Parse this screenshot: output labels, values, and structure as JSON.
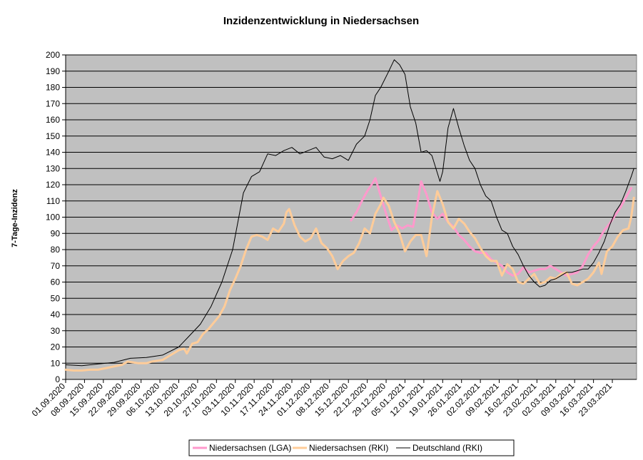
{
  "chart_data": {
    "type": "line",
    "title": "Inzidenzentwicklung in Niedersachsen",
    "xlabel": "",
    "ylabel": "7-Tage-Inzidenz",
    "ylim": [
      0,
      200
    ],
    "yticks": [
      0,
      10,
      20,
      30,
      40,
      50,
      60,
      70,
      80,
      90,
      100,
      110,
      120,
      130,
      140,
      150,
      160,
      170,
      180,
      190,
      200
    ],
    "xlim": [
      "2020-09-01",
      "2021-03-31"
    ],
    "xticks": [
      "01.09.2020",
      "08.09.2020",
      "15.09.2020",
      "22.09.2020",
      "29.09.2020",
      "06.10.2020",
      "13.10.2020",
      "20.10.2020",
      "27.10.2020",
      "03.11.2020",
      "10.11.2020",
      "17.11.2020",
      "24.11.2020",
      "01.12.2020",
      "08.12.2020",
      "15.12.2020",
      "22.12.2020",
      "29.12.2020",
      "05.01.2021",
      "12.01.2021",
      "19.01.2021",
      "26.01.2021",
      "02.02.2021",
      "09.02.2021",
      "16.02.2021",
      "23.02.2021",
      "02.03.2021",
      "09.03.2021",
      "16.03.2021",
      "23.03.2021"
    ],
    "grid": true,
    "legend_position": "bottom",
    "background": "#c0c0c0",
    "series": [
      {
        "name": "Niedersachsen (LGA)",
        "color": "#ff99cc",
        "points": [
          [
            "2020-12-16",
            98
          ],
          [
            "2020-12-18",
            103
          ],
          [
            "2020-12-20",
            110
          ],
          [
            "2020-12-22",
            116
          ],
          [
            "2020-12-24",
            121
          ],
          [
            "2020-12-25",
            124
          ],
          [
            "2020-12-27",
            113
          ],
          [
            "2020-12-29",
            102
          ],
          [
            "2020-12-31",
            92
          ],
          [
            "2021-01-02",
            95
          ],
          [
            "2021-01-04",
            93
          ],
          [
            "2021-01-06",
            95
          ],
          [
            "2021-01-08",
            94
          ],
          [
            "2021-01-10",
            112
          ],
          [
            "2021-01-11",
            122
          ],
          [
            "2021-01-13",
            114
          ],
          [
            "2021-01-15",
            103
          ],
          [
            "2021-01-17",
            99
          ],
          [
            "2021-01-19",
            102
          ],
          [
            "2021-01-21",
            97
          ],
          [
            "2021-01-23",
            94
          ],
          [
            "2021-01-25",
            89
          ],
          [
            "2021-01-27",
            86
          ],
          [
            "2021-01-29",
            82
          ],
          [
            "2021-01-31",
            79
          ],
          [
            "2021-02-02",
            78
          ],
          [
            "2021-02-04",
            78
          ],
          [
            "2021-02-06",
            74
          ],
          [
            "2021-02-08",
            72
          ],
          [
            "2021-02-10",
            70
          ],
          [
            "2021-02-12",
            66
          ],
          [
            "2021-02-14",
            64
          ],
          [
            "2021-02-16",
            65
          ],
          [
            "2021-02-18",
            69
          ],
          [
            "2021-02-20",
            66
          ],
          [
            "2021-02-22",
            67
          ],
          [
            "2021-02-24",
            68
          ],
          [
            "2021-02-26",
            68
          ],
          [
            "2021-02-28",
            70
          ],
          [
            "2021-03-02",
            68
          ],
          [
            "2021-03-04",
            66
          ],
          [
            "2021-03-06",
            64
          ],
          [
            "2021-03-08",
            65
          ],
          [
            "2021-03-10",
            66
          ],
          [
            "2021-03-12",
            70
          ],
          [
            "2021-03-14",
            77
          ],
          [
            "2021-03-16",
            82
          ],
          [
            "2021-03-18",
            86
          ],
          [
            "2021-03-20",
            92
          ],
          [
            "2021-03-22",
            96
          ],
          [
            "2021-03-24",
            101
          ],
          [
            "2021-03-26",
            106
          ],
          [
            "2021-03-28",
            112
          ],
          [
            "2021-03-30",
            118
          ]
        ]
      },
      {
        "name": "Niedersachsen (RKI)",
        "color": "#ffcc99",
        "points": [
          [
            "2020-09-01",
            6
          ],
          [
            "2020-09-04",
            5.5
          ],
          [
            "2020-09-07",
            5.5
          ],
          [
            "2020-09-10",
            6
          ],
          [
            "2020-09-13",
            6
          ],
          [
            "2020-09-16",
            7
          ],
          [
            "2020-09-19",
            8
          ],
          [
            "2020-09-22",
            9
          ],
          [
            "2020-09-24",
            11
          ],
          [
            "2020-09-26",
            10.5
          ],
          [
            "2020-09-28",
            10
          ],
          [
            "2020-10-01",
            10
          ],
          [
            "2020-10-03",
            11
          ],
          [
            "2020-10-05",
            11.5
          ],
          [
            "2020-10-07",
            12
          ],
          [
            "2020-10-09",
            14
          ],
          [
            "2020-10-11",
            16
          ],
          [
            "2020-10-13",
            18
          ],
          [
            "2020-10-15",
            19
          ],
          [
            "2020-10-16",
            16
          ],
          [
            "2020-10-18",
            22
          ],
          [
            "2020-10-20",
            23
          ],
          [
            "2020-10-22",
            28
          ],
          [
            "2020-10-24",
            31
          ],
          [
            "2020-10-26",
            35
          ],
          [
            "2020-10-28",
            39
          ],
          [
            "2020-10-30",
            45
          ],
          [
            "2020-11-01",
            55
          ],
          [
            "2020-11-03",
            62
          ],
          [
            "2020-11-05",
            70
          ],
          [
            "2020-11-07",
            80
          ],
          [
            "2020-11-09",
            88
          ],
          [
            "2020-11-11",
            89
          ],
          [
            "2020-11-13",
            88
          ],
          [
            "2020-11-15",
            86
          ],
          [
            "2020-11-17",
            93
          ],
          [
            "2020-11-19",
            91
          ],
          [
            "2020-11-21",
            96
          ],
          [
            "2020-11-22",
            103
          ],
          [
            "2020-11-23",
            105
          ],
          [
            "2020-11-25",
            95
          ],
          [
            "2020-11-27",
            88
          ],
          [
            "2020-11-29",
            85
          ],
          [
            "2020-12-01",
            87
          ],
          [
            "2020-12-03",
            93
          ],
          [
            "2020-12-05",
            84
          ],
          [
            "2020-12-07",
            81
          ],
          [
            "2020-12-09",
            76
          ],
          [
            "2020-12-11",
            68
          ],
          [
            "2020-12-13",
            73
          ],
          [
            "2020-12-15",
            76
          ],
          [
            "2020-12-17",
            78
          ],
          [
            "2020-12-19",
            84
          ],
          [
            "2020-12-21",
            93
          ],
          [
            "2020-12-23",
            90
          ],
          [
            "2020-12-25",
            102
          ],
          [
            "2020-12-27",
            108
          ],
          [
            "2020-12-28",
            112
          ],
          [
            "2020-12-30",
            107
          ],
          [
            "2021-01-01",
            97
          ],
          [
            "2021-01-03",
            90
          ],
          [
            "2021-01-05",
            79
          ],
          [
            "2021-01-07",
            85
          ],
          [
            "2021-01-09",
            89
          ],
          [
            "2021-01-11",
            89
          ],
          [
            "2021-01-13",
            76
          ],
          [
            "2021-01-15",
            100
          ],
          [
            "2021-01-17",
            116
          ],
          [
            "2021-01-19",
            108
          ],
          [
            "2021-01-21",
            97
          ],
          [
            "2021-01-23",
            93
          ],
          [
            "2021-01-25",
            99
          ],
          [
            "2021-01-27",
            96
          ],
          [
            "2021-01-29",
            91
          ],
          [
            "2021-01-31",
            87
          ],
          [
            "2021-02-02",
            81
          ],
          [
            "2021-02-04",
            76
          ],
          [
            "2021-02-06",
            73
          ],
          [
            "2021-02-08",
            73
          ],
          [
            "2021-02-10",
            64
          ],
          [
            "2021-02-12",
            71
          ],
          [
            "2021-02-14",
            68
          ],
          [
            "2021-02-16",
            60
          ],
          [
            "2021-02-18",
            59
          ],
          [
            "2021-02-20",
            62
          ],
          [
            "2021-02-22",
            65
          ],
          [
            "2021-02-24",
            59
          ],
          [
            "2021-02-26",
            60
          ],
          [
            "2021-02-28",
            63
          ],
          [
            "2021-03-02",
            62
          ],
          [
            "2021-03-04",
            65
          ],
          [
            "2021-03-06",
            66
          ],
          [
            "2021-03-08",
            59
          ],
          [
            "2021-03-10",
            58
          ],
          [
            "2021-03-12",
            60
          ],
          [
            "2021-03-14",
            62
          ],
          [
            "2021-03-16",
            66
          ],
          [
            "2021-03-18",
            72
          ],
          [
            "2021-03-19",
            65
          ],
          [
            "2021-03-21",
            79
          ],
          [
            "2021-03-23",
            82
          ],
          [
            "2021-03-25",
            88
          ],
          [
            "2021-03-27",
            92
          ],
          [
            "2021-03-29",
            93
          ],
          [
            "2021-03-30",
            100
          ],
          [
            "2021-03-31",
            112
          ]
        ]
      },
      {
        "name": "Deutschland (RKI)",
        "color": "#000000",
        "points": [
          [
            "2020-09-01",
            9
          ],
          [
            "2020-09-07",
            8.5
          ],
          [
            "2020-09-13",
            9.5
          ],
          [
            "2020-09-19",
            10.5
          ],
          [
            "2020-09-25",
            13
          ],
          [
            "2020-10-01",
            13.5
          ],
          [
            "2020-10-07",
            15
          ],
          [
            "2020-10-13",
            20
          ],
          [
            "2020-10-17",
            27
          ],
          [
            "2020-10-21",
            34
          ],
          [
            "2020-10-25",
            45
          ],
          [
            "2020-10-29",
            60
          ],
          [
            "2020-11-02",
            80
          ],
          [
            "2020-11-06",
            115
          ],
          [
            "2020-11-09",
            125
          ],
          [
            "2020-11-12",
            128
          ],
          [
            "2020-11-15",
            139
          ],
          [
            "2020-11-18",
            138
          ],
          [
            "2020-11-21",
            141
          ],
          [
            "2020-11-24",
            143
          ],
          [
            "2020-11-27",
            139
          ],
          [
            "2020-11-30",
            141
          ],
          [
            "2020-12-03",
            143
          ],
          [
            "2020-12-06",
            137
          ],
          [
            "2020-12-09",
            136
          ],
          [
            "2020-12-12",
            138
          ],
          [
            "2020-12-15",
            135
          ],
          [
            "2020-12-18",
            145
          ],
          [
            "2020-12-21",
            150
          ],
          [
            "2020-12-23",
            160
          ],
          [
            "2020-12-25",
            175
          ],
          [
            "2020-12-27",
            180
          ],
          [
            "2020-12-30",
            190
          ],
          [
            "2021-01-01",
            197
          ],
          [
            "2021-01-03",
            194
          ],
          [
            "2021-01-05",
            188
          ],
          [
            "2021-01-07",
            168
          ],
          [
            "2021-01-09",
            158
          ],
          [
            "2021-01-11",
            140
          ],
          [
            "2021-01-13",
            141
          ],
          [
            "2021-01-15",
            138
          ],
          [
            "2021-01-18",
            122
          ],
          [
            "2021-01-19",
            128
          ],
          [
            "2021-01-21",
            155
          ],
          [
            "2021-01-23",
            167
          ],
          [
            "2021-01-25",
            155
          ],
          [
            "2021-01-27",
            144
          ],
          [
            "2021-01-29",
            135
          ],
          [
            "2021-01-31",
            130
          ],
          [
            "2021-02-02",
            120
          ],
          [
            "2021-02-04",
            113
          ],
          [
            "2021-02-06",
            110
          ],
          [
            "2021-02-08",
            100
          ],
          [
            "2021-02-10",
            92
          ],
          [
            "2021-02-12",
            90
          ],
          [
            "2021-02-14",
            82
          ],
          [
            "2021-02-16",
            77
          ],
          [
            "2021-02-18",
            70
          ],
          [
            "2021-02-20",
            64
          ],
          [
            "2021-02-22",
            60
          ],
          [
            "2021-02-24",
            57
          ],
          [
            "2021-02-26",
            58
          ],
          [
            "2021-02-28",
            61
          ],
          [
            "2021-03-02",
            62
          ],
          [
            "2021-03-04",
            64
          ],
          [
            "2021-03-06",
            66
          ],
          [
            "2021-03-08",
            66
          ],
          [
            "2021-03-10",
            67
          ],
          [
            "2021-03-12",
            68
          ],
          [
            "2021-03-14",
            68
          ],
          [
            "2021-03-16",
            72
          ],
          [
            "2021-03-18",
            78
          ],
          [
            "2021-03-20",
            85
          ],
          [
            "2021-03-22",
            95
          ],
          [
            "2021-03-24",
            103
          ],
          [
            "2021-03-26",
            108
          ],
          [
            "2021-03-28",
            116
          ],
          [
            "2021-03-30",
            125
          ],
          [
            "2021-03-31",
            130
          ]
        ]
      }
    ]
  }
}
